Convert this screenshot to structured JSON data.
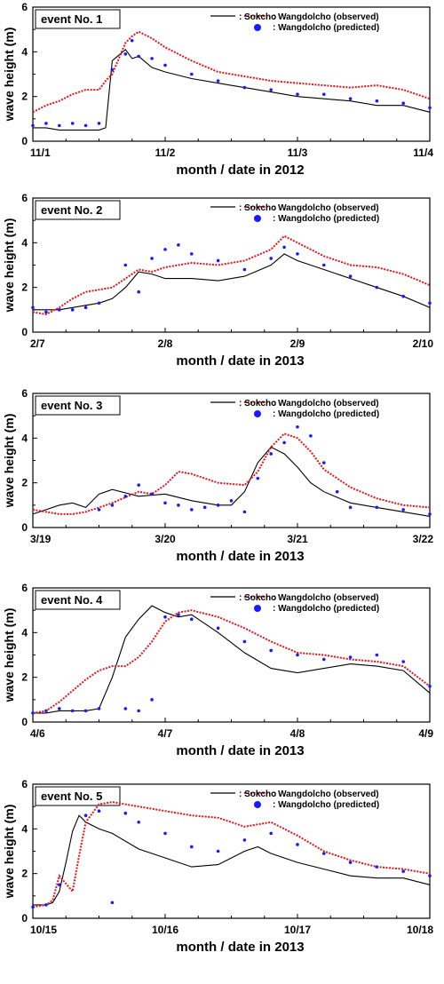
{
  "chart_data": [
    {
      "type": "line",
      "event_label": "event No. 1",
      "xlabel": "month / date in 2012",
      "ylabel": "wave height (m)",
      "ylim": [
        0,
        6
      ],
      "yticks": [
        "0",
        "2",
        "4",
        "6"
      ],
      "xticks": [
        "11/1",
        "11/2",
        "11/3",
        "11/4"
      ],
      "xlim": [
        0,
        3
      ],
      "legend": [
        "Sokcho",
        "Wangdolcho (observed)",
        "Wangdolcho (predicted)"
      ],
      "series": [
        {
          "name": "Sokcho",
          "style": "solid",
          "color": "#000000",
          "x": [
            0,
            0.1,
            0.2,
            0.3,
            0.4,
            0.5,
            0.55,
            0.6,
            0.7,
            0.75,
            0.8,
            0.9,
            1.0,
            1.2,
            1.4,
            1.6,
            1.8,
            2.0,
            2.2,
            2.4,
            2.6,
            2.8,
            3.0
          ],
          "y": [
            0.6,
            0.6,
            0.5,
            0.5,
            0.5,
            0.5,
            0.6,
            3.6,
            4.1,
            3.7,
            3.8,
            3.3,
            3.1,
            2.8,
            2.6,
            2.4,
            2.2,
            2.0,
            1.9,
            1.8,
            1.6,
            1.6,
            1.3
          ]
        },
        {
          "name": "Wangdolcho (observed)",
          "style": "dotted",
          "color": "#e8141b",
          "x": [
            0,
            0.1,
            0.2,
            0.3,
            0.4,
            0.5,
            0.55,
            0.6,
            0.7,
            0.75,
            0.8,
            0.9,
            1.0,
            1.2,
            1.4,
            1.6,
            1.8,
            2.0,
            2.2,
            2.4,
            2.6,
            2.8,
            3.0
          ],
          "y": [
            1.3,
            1.6,
            1.8,
            2.1,
            2.3,
            2.3,
            2.7,
            3.0,
            4.4,
            4.7,
            4.9,
            4.6,
            4.2,
            3.6,
            3.1,
            2.9,
            2.7,
            2.6,
            2.5,
            2.4,
            2.5,
            2.3,
            1.9
          ]
        },
        {
          "name": "Wangdolcho (predicted)",
          "style": "markers",
          "color": "#1a1aff",
          "x": [
            0,
            0.1,
            0.2,
            0.3,
            0.4,
            0.5,
            0.6,
            0.7,
            0.75,
            0.8,
            0.9,
            1.0,
            1.2,
            1.4,
            1.6,
            1.8,
            2.0,
            2.2,
            2.4,
            2.6,
            2.8,
            3.0
          ],
          "y": [
            0.7,
            0.8,
            0.7,
            0.8,
            0.7,
            0.8,
            3.2,
            3.9,
            4.5,
            3.8,
            3.7,
            3.4,
            3.0,
            2.7,
            2.4,
            2.3,
            2.1,
            2.1,
            1.9,
            1.8,
            1.7,
            1.5
          ]
        }
      ]
    },
    {
      "type": "line",
      "event_label": "event No. 2",
      "xlabel": "month / date in 2013",
      "ylabel": "wave height (m)",
      "ylim": [
        0,
        6
      ],
      "yticks": [
        "0",
        "2",
        "4",
        "6"
      ],
      "xticks": [
        "2/7",
        "2/8",
        "2/9",
        "2/10"
      ],
      "xlim": [
        0,
        3
      ],
      "legend": [
        "Sokcho",
        "Wangdolcho (observed)",
        "Wangdolcho (predicted)"
      ],
      "series": [
        {
          "name": "Sokcho",
          "style": "solid",
          "color": "#000000",
          "x": [
            0,
            0.1,
            0.2,
            0.3,
            0.4,
            0.5,
            0.6,
            0.7,
            0.8,
            0.9,
            1.0,
            1.2,
            1.4,
            1.6,
            1.8,
            1.9,
            2.0,
            2.2,
            2.4,
            2.6,
            2.8,
            3.0
          ],
          "y": [
            1.0,
            1.0,
            1.0,
            1.1,
            1.2,
            1.3,
            1.5,
            2.0,
            2.7,
            2.6,
            2.4,
            2.4,
            2.3,
            2.5,
            3.0,
            3.5,
            3.2,
            2.8,
            2.4,
            2.0,
            1.6,
            1.1
          ]
        },
        {
          "name": "Wangdolcho (observed)",
          "style": "dotted",
          "color": "#e8141b",
          "x": [
            0,
            0.1,
            0.2,
            0.3,
            0.4,
            0.5,
            0.6,
            0.7,
            0.8,
            0.9,
            1.0,
            1.2,
            1.4,
            1.6,
            1.8,
            1.9,
            2.0,
            2.2,
            2.4,
            2.6,
            2.8,
            3.0
          ],
          "y": [
            0.9,
            0.8,
            1.1,
            1.5,
            1.8,
            1.9,
            2.0,
            2.4,
            2.8,
            2.7,
            2.9,
            3.1,
            3.0,
            3.2,
            3.7,
            4.3,
            4.0,
            3.4,
            3.0,
            2.9,
            2.6,
            2.1
          ]
        },
        {
          "name": "Wangdolcho (predicted)",
          "style": "markers",
          "color": "#1a1aff",
          "x": [
            0,
            0.1,
            0.2,
            0.3,
            0.4,
            0.5,
            0.7,
            0.8,
            0.9,
            1.0,
            1.1,
            1.2,
            1.4,
            1.6,
            1.8,
            1.9,
            2.0,
            2.2,
            2.4,
            2.6,
            2.8,
            3.0
          ],
          "y": [
            1.1,
            0.9,
            1.0,
            1.0,
            1.1,
            1.3,
            3.0,
            1.8,
            3.3,
            3.7,
            3.9,
            3.5,
            3.2,
            2.8,
            3.3,
            3.8,
            3.5,
            3.0,
            2.5,
            2.0,
            1.6,
            1.3
          ]
        }
      ]
    },
    {
      "type": "line",
      "event_label": "event No. 3",
      "xlabel": "month / date in 2013",
      "ylabel": "wave height (m)",
      "ylim": [
        0,
        6
      ],
      "yticks": [
        "0",
        "2",
        "4",
        "6"
      ],
      "xticks": [
        "3/19",
        "3/20",
        "3/21",
        "3/22"
      ],
      "xlim": [
        0,
        3
      ],
      "legend": [
        "Sokcho",
        "Wangdolcho (observed)",
        "Wangdolcho (predicted)"
      ],
      "series": [
        {
          "name": "Sokcho",
          "style": "solid",
          "color": "#000000",
          "x": [
            0,
            0.1,
            0.2,
            0.3,
            0.4,
            0.5,
            0.6,
            0.8,
            1.0,
            1.2,
            1.4,
            1.5,
            1.6,
            1.7,
            1.8,
            1.9,
            2.0,
            2.1,
            2.2,
            2.4,
            2.6,
            2.8,
            3.0
          ],
          "y": [
            0.6,
            0.8,
            1.0,
            1.1,
            0.9,
            1.5,
            1.7,
            1.4,
            1.5,
            1.2,
            1.0,
            1.0,
            1.6,
            2.9,
            3.6,
            3.3,
            2.7,
            2.0,
            1.6,
            1.1,
            0.9,
            0.7,
            0.5
          ]
        },
        {
          "name": "Wangdolcho (observed)",
          "style": "dotted",
          "color": "#e8141b",
          "x": [
            0,
            0.1,
            0.2,
            0.3,
            0.4,
            0.5,
            0.6,
            0.8,
            0.9,
            1.0,
            1.1,
            1.2,
            1.4,
            1.6,
            1.7,
            1.8,
            1.9,
            2.0,
            2.1,
            2.2,
            2.4,
            2.6,
            2.8,
            3.0
          ],
          "y": [
            0.8,
            0.7,
            0.6,
            0.6,
            0.7,
            0.9,
            1.1,
            1.6,
            1.5,
            1.9,
            2.5,
            2.4,
            2.0,
            1.9,
            2.5,
            3.6,
            4.2,
            4.0,
            3.4,
            2.6,
            1.8,
            1.3,
            1.0,
            0.9
          ]
        },
        {
          "name": "Wangdolcho (predicted)",
          "style": "markers",
          "color": "#1a1aff",
          "x": [
            0.5,
            0.6,
            0.7,
            0.8,
            0.9,
            1.0,
            1.1,
            1.2,
            1.3,
            1.4,
            1.5,
            1.6,
            1.7,
            1.8,
            1.9,
            2.0,
            2.1,
            2.2,
            2.3,
            2.4,
            2.6,
            2.8,
            3.0
          ],
          "y": [
            0.8,
            1.0,
            1.4,
            1.9,
            1.5,
            1.1,
            1.0,
            0.8,
            0.9,
            1.0,
            1.2,
            0.7,
            2.2,
            3.3,
            3.8,
            4.5,
            4.1,
            2.9,
            1.6,
            0.9,
            0.9,
            0.8,
            0.6
          ]
        }
      ]
    },
    {
      "type": "line",
      "event_label": "event No. 4",
      "xlabel": "month / date in 2013",
      "ylabel": "wave height (m)",
      "ylim": [
        0,
        6
      ],
      "yticks": [
        "0",
        "2",
        "4",
        "6"
      ],
      "xticks": [
        "4/6",
        "4/7",
        "4/8",
        "4/9"
      ],
      "xlim": [
        0,
        3
      ],
      "legend": [
        "Sokcho",
        "Wangdolcho (observed)",
        "Wangdolcho (predicted)"
      ],
      "series": [
        {
          "name": "Sokcho",
          "style": "solid",
          "color": "#000000",
          "x": [
            0,
            0.1,
            0.2,
            0.3,
            0.4,
            0.5,
            0.6,
            0.7,
            0.8,
            0.9,
            1.0,
            1.1,
            1.2,
            1.4,
            1.6,
            1.8,
            2.0,
            2.2,
            2.4,
            2.6,
            2.8,
            3.0
          ],
          "y": [
            0.4,
            0.4,
            0.5,
            0.5,
            0.5,
            0.6,
            2.0,
            3.8,
            4.6,
            5.2,
            4.9,
            4.7,
            4.8,
            4.0,
            3.1,
            2.4,
            2.2,
            2.4,
            2.6,
            2.5,
            2.3,
            1.3
          ]
        },
        {
          "name": "Wangdolcho (observed)",
          "style": "dotted",
          "color": "#e8141b",
          "x": [
            0,
            0.1,
            0.2,
            0.3,
            0.4,
            0.5,
            0.6,
            0.7,
            0.8,
            0.9,
            1.0,
            1.1,
            1.2,
            1.4,
            1.6,
            1.8,
            2.0,
            2.2,
            2.4,
            2.6,
            2.8,
            3.0
          ],
          "y": [
            0.4,
            0.5,
            0.9,
            1.4,
            1.9,
            2.3,
            2.5,
            2.5,
            2.9,
            3.6,
            4.5,
            4.9,
            5.0,
            4.7,
            4.2,
            3.6,
            3.1,
            3.0,
            2.8,
            2.7,
            2.5,
            1.6
          ]
        },
        {
          "name": "Wangdolcho (predicted)",
          "style": "markers",
          "color": "#1a1aff",
          "x": [
            0,
            0.1,
            0.2,
            0.3,
            0.4,
            0.5,
            0.7,
            0.8,
            0.9,
            1.0,
            1.1,
            1.2,
            1.4,
            1.6,
            1.8,
            2.0,
            2.2,
            2.4,
            2.6,
            2.8,
            3.0
          ],
          "y": [
            0.4,
            0.5,
            0.6,
            0.5,
            0.5,
            0.6,
            0.6,
            0.5,
            1.0,
            4.7,
            4.8,
            4.6,
            4.2,
            3.6,
            3.2,
            3.0,
            2.8,
            2.9,
            3.0,
            2.7,
            1.6
          ]
        }
      ]
    },
    {
      "type": "line",
      "event_label": "event No. 5",
      "xlabel": "month / date in 2013",
      "ylabel": "wave height (m)",
      "ylim": [
        0,
        6
      ],
      "yticks": [
        "0",
        "2",
        "4",
        "6"
      ],
      "xticks": [
        "10/15",
        "10/16",
        "10/17",
        "10/18"
      ],
      "xlim": [
        0,
        3
      ],
      "legend": [
        "Sokcho",
        "Wangdolcho (observed)",
        "Wangdolcho (predicted)"
      ],
      "series": [
        {
          "name": "Sokcho",
          "style": "solid",
          "color": "#000000",
          "x": [
            0,
            0.1,
            0.15,
            0.2,
            0.25,
            0.3,
            0.35,
            0.4,
            0.5,
            0.6,
            0.8,
            1.0,
            1.2,
            1.4,
            1.6,
            1.7,
            1.8,
            2.0,
            2.2,
            2.4,
            2.6,
            2.8,
            3.0
          ],
          "y": [
            0.6,
            0.6,
            0.7,
            1.2,
            2.5,
            3.9,
            4.6,
            4.3,
            4.0,
            3.8,
            3.1,
            2.7,
            2.3,
            2.4,
            3.0,
            3.2,
            2.9,
            2.5,
            2.2,
            1.9,
            1.8,
            1.8,
            1.5
          ]
        },
        {
          "name": "Wangdolcho (observed)",
          "style": "dotted",
          "color": "#e8141b",
          "x": [
            0,
            0.1,
            0.15,
            0.2,
            0.3,
            0.35,
            0.4,
            0.5,
            0.6,
            0.8,
            1.0,
            1.2,
            1.4,
            1.6,
            1.8,
            2.0,
            2.2,
            2.4,
            2.6,
            2.8,
            3.0
          ],
          "y": [
            0.5,
            0.6,
            0.8,
            1.9,
            1.2,
            2.8,
            4.3,
            5.1,
            5.2,
            5.0,
            4.8,
            4.6,
            4.5,
            4.1,
            4.3,
            3.7,
            3.0,
            2.6,
            2.3,
            2.2,
            2.0
          ]
        },
        {
          "name": "Wangdolcho (predicted)",
          "style": "markers",
          "color": "#1a1aff",
          "x": [
            0,
            0.1,
            0.2,
            0.4,
            0.5,
            0.6,
            0.7,
            0.8,
            1.0,
            1.2,
            1.4,
            1.6,
            1.8,
            2.0,
            2.2,
            2.4,
            2.6,
            2.8,
            3.0
          ],
          "y": [
            0.5,
            0.6,
            1.5,
            4.6,
            4.8,
            0.7,
            4.7,
            4.3,
            3.8,
            3.2,
            3.0,
            3.5,
            3.8,
            3.3,
            2.9,
            2.5,
            2.3,
            2.1,
            1.9
          ]
        }
      ]
    }
  ]
}
